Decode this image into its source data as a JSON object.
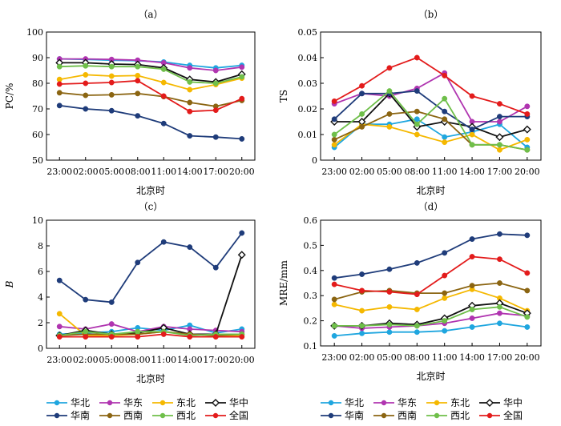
{
  "figure": {
    "legend": {
      "entries": [
        "华北",
        "华东",
        "东北",
        "华中",
        "华南",
        "西南",
        "西北",
        "全国"
      ],
      "placement": "bottom"
    },
    "colors": {
      "华北": "#1fa6df",
      "华东": "#b035b0",
      "东北": "#f5b800",
      "华中": "#111111",
      "华南": "#1f3c7a",
      "西南": "#8b6512",
      "西北": "#6fbf4a",
      "全国": "#e31b1b"
    }
  },
  "chart_data": [
    {
      "type": "line",
      "title": "（a）",
      "xlabel": "北京时",
      "ylabel": "PC/%",
      "ylim": [
        50,
        100
      ],
      "yticks": [
        50,
        60,
        70,
        80,
        90,
        100
      ],
      "categories": [
        "23:00",
        "02:00",
        "05:00",
        "08:00",
        "11:00",
        "14:00",
        "17:00",
        "20:00"
      ],
      "series": [
        {
          "name": "华北",
          "values": [
            89.5,
            89.3,
            89.0,
            88.8,
            88.3,
            87.0,
            86.0,
            87.0
          ]
        },
        {
          "name": "华东",
          "values": [
            89.5,
            89.5,
            89.3,
            89.0,
            88.0,
            86.0,
            85.0,
            86.3
          ]
        },
        {
          "name": "东北",
          "values": [
            81.5,
            83.3,
            82.8,
            83.0,
            80.3,
            77.5,
            79.5,
            82.0
          ]
        },
        {
          "name": "华中",
          "values": [
            88.0,
            88.0,
            87.5,
            87.3,
            86.0,
            81.5,
            80.5,
            83.5
          ]
        },
        {
          "name": "华南",
          "values": [
            71.3,
            70.0,
            69.3,
            67.3,
            64.3,
            59.5,
            59.0,
            58.3
          ]
        },
        {
          "name": "西南",
          "values": [
            76.3,
            75.3,
            75.5,
            76.0,
            74.8,
            72.5,
            71.0,
            73.3
          ]
        },
        {
          "name": "西北",
          "values": [
            86.5,
            86.8,
            86.5,
            86.5,
            85.5,
            80.5,
            80.0,
            82.5
          ]
        },
        {
          "name": "全国",
          "values": [
            79.7,
            80.0,
            80.3,
            81.0,
            75.0,
            69.0,
            69.5,
            74.0
          ]
        }
      ]
    },
    {
      "type": "line",
      "title": "（b）",
      "xlabel": "北京时",
      "ylabel": "TS",
      "ylim": [
        0,
        0.05
      ],
      "yticks": [
        "0",
        "0.01",
        "0.02",
        "0.03",
        "0.04",
        "0.05"
      ],
      "categories": [
        "23:00",
        "02:00",
        "05:00",
        "08:00",
        "11:00",
        "14:00",
        "17:00",
        "20:00"
      ],
      "series": [
        {
          "name": "华北",
          "values": [
            0.005,
            0.014,
            0.014,
            0.016,
            0.009,
            0.011,
            0.014,
            0.005
          ]
        },
        {
          "name": "华东",
          "values": [
            0.022,
            0.026,
            0.025,
            0.028,
            0.034,
            0.015,
            0.015,
            0.021
          ]
        },
        {
          "name": "东北",
          "values": [
            0.006,
            0.014,
            0.013,
            0.01,
            0.007,
            0.01,
            0.004,
            0.008
          ]
        },
        {
          "name": "华中",
          "values": [
            0.015,
            0.015,
            0.026,
            0.013,
            0.015,
            0.013,
            0.009,
            0.012
          ]
        },
        {
          "name": "华南",
          "values": [
            0.016,
            0.026,
            0.026,
            0.027,
            0.019,
            0.012,
            0.017,
            0.017
          ]
        },
        {
          "name": "西南",
          "values": [
            0.008,
            0.013,
            0.018,
            0.019,
            0.016,
            0.006,
            0.006,
            0.004
          ]
        },
        {
          "name": "西北",
          "values": [
            0.01,
            0.018,
            0.027,
            0.014,
            0.024,
            0.006,
            0.006,
            0.004
          ]
        },
        {
          "name": "全国",
          "values": [
            0.023,
            0.029,
            0.036,
            0.04,
            0.033,
            0.025,
            0.022,
            0.018
          ]
        }
      ]
    },
    {
      "type": "line",
      "title": "（c）",
      "xlabel": "北京时",
      "ylabel": "B",
      "ylim": [
        0,
        10
      ],
      "yticks": [
        0,
        2,
        4,
        6,
        8,
        10
      ],
      "categories": [
        "23:00",
        "02:00",
        "05:00",
        "08:00",
        "11:00",
        "14:00",
        "17:00",
        "20:00"
      ],
      "series": [
        {
          "name": "华北",
          "values": [
            1.1,
            1.2,
            1.3,
            1.6,
            1.4,
            1.8,
            1.2,
            1.5
          ]
        },
        {
          "name": "华东",
          "values": [
            1.7,
            1.5,
            1.9,
            1.3,
            1.7,
            1.5,
            1.4,
            1.3
          ]
        },
        {
          "name": "东北",
          "values": [
            2.7,
            1.0,
            1.0,
            1.1,
            1.3,
            1.1,
            1.0,
            1.0
          ]
        },
        {
          "name": "华中",
          "values": [
            1.0,
            1.4,
            1.1,
            1.2,
            1.6,
            1.1,
            1.1,
            7.3
          ]
        },
        {
          "name": "华南",
          "values": [
            5.3,
            3.8,
            3.6,
            6.7,
            8.3,
            7.9,
            6.3,
            9.0
          ]
        },
        {
          "name": "西南",
          "values": [
            1.0,
            1.1,
            1.1,
            1.1,
            1.3,
            1.1,
            1.0,
            1.1
          ]
        },
        {
          "name": "西北",
          "values": [
            1.0,
            1.3,
            1.1,
            1.3,
            1.3,
            1.0,
            1.1,
            1.1
          ]
        },
        {
          "name": "全国",
          "values": [
            0.9,
            0.9,
            0.9,
            0.9,
            1.1,
            0.9,
            0.9,
            0.9
          ]
        }
      ]
    },
    {
      "type": "line",
      "title": "（d）",
      "xlabel": "北京时",
      "ylabel": "MRE/mm",
      "ylim": [
        0.1,
        0.6
      ],
      "yticks": [
        "0.1",
        "0.2",
        "0.3",
        "0.4",
        "0.5",
        "0.6"
      ],
      "categories": [
        "23:00",
        "02:00",
        "05:00",
        "08:00",
        "11:00",
        "14:00",
        "17:00",
        "20:00"
      ],
      "series": [
        {
          "name": "华北",
          "values": [
            0.14,
            0.15,
            0.155,
            0.155,
            0.16,
            0.175,
            0.19,
            0.175
          ]
        },
        {
          "name": "华东",
          "values": [
            0.18,
            0.17,
            0.175,
            0.18,
            0.19,
            0.21,
            0.23,
            0.22
          ]
        },
        {
          "name": "东北",
          "values": [
            0.265,
            0.24,
            0.255,
            0.245,
            0.29,
            0.325,
            0.29,
            0.24
          ]
        },
        {
          "name": "华中",
          "values": [
            0.18,
            0.18,
            0.19,
            0.185,
            0.21,
            0.26,
            0.27,
            0.23
          ]
        },
        {
          "name": "华南",
          "values": [
            0.37,
            0.385,
            0.405,
            0.43,
            0.47,
            0.525,
            0.545,
            0.54
          ]
        },
        {
          "name": "西南",
          "values": [
            0.285,
            0.315,
            0.32,
            0.31,
            0.31,
            0.34,
            0.35,
            0.32
          ]
        },
        {
          "name": "西北",
          "values": [
            0.18,
            0.18,
            0.185,
            0.18,
            0.2,
            0.245,
            0.255,
            0.215
          ]
        },
        {
          "name": "全国",
          "values": [
            0.345,
            0.32,
            0.315,
            0.305,
            0.38,
            0.455,
            0.445,
            0.39
          ]
        }
      ]
    }
  ]
}
